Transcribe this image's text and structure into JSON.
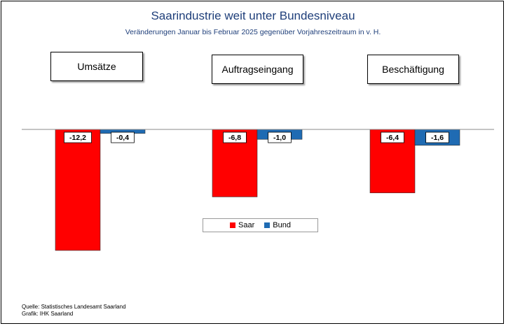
{
  "chart_data": {
    "type": "bar",
    "title": "Saarindustrie weit unter Bundesniveau",
    "subtitle": "Veränderungen Januar bis Februar 2025 gegenüber Vorjahreszeitraum in v. H.",
    "categories": [
      "Umsätze",
      "Auftragseingang",
      "Beschäftigung"
    ],
    "series": [
      {
        "name": "Saar",
        "values": [
          -12.2,
          -6.8,
          -6.4
        ],
        "labels": [
          "-12,2",
          "-6,8",
          "-6,4"
        ],
        "color": "#ff0000"
      },
      {
        "name": "Bund",
        "values": [
          -0.4,
          -1.0,
          -1.6
        ],
        "labels": [
          "-0,4",
          "-1,0",
          "-1,6"
        ],
        "color": "#1f6bb3"
      }
    ],
    "xlabel": "",
    "ylabel": "",
    "ylim": [
      -13,
      0
    ],
    "grid": false,
    "legend_position": "center"
  },
  "footer": {
    "source": "Quelle: Statistisches Landesamt Saarland",
    "graphic": "Grafik: IHK Saarland"
  }
}
